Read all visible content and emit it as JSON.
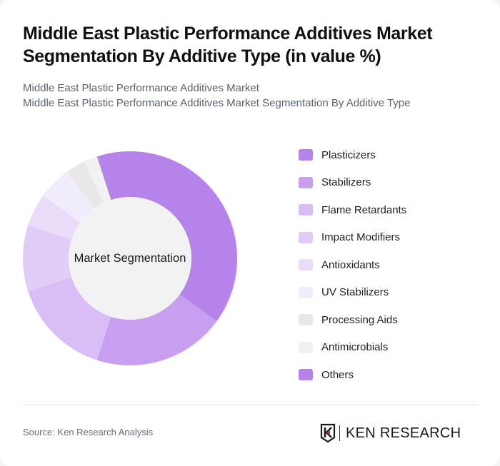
{
  "header": {
    "title": "Middle East Plastic Performance Additives Market Segmentation By Additive Type (in value %)",
    "subtitle_line1": "Middle East Plastic Performance Additives Market",
    "subtitle_line2": "Middle East Plastic Performance Additives Market Segmentation By Additive Type"
  },
  "chart": {
    "center_label": "Market Segmentation"
  },
  "legend": {
    "items": [
      {
        "label": "Plasticizers",
        "color": "#b583ea"
      },
      {
        "label": "Stabilizers",
        "color": "#c79ef0"
      },
      {
        "label": "Flame Retardants",
        "color": "#d8bdf6"
      },
      {
        "label": "Impact Modifiers",
        "color": "#e0ccf7"
      },
      {
        "label": "Antioxidants",
        "color": "#e9dcfa"
      },
      {
        "label": "UV Stabilizers",
        "color": "#f2ebfc"
      },
      {
        "label": "Processing Aids",
        "color": "#e8e8e8"
      },
      {
        "label": "Antimicrobials",
        "color": "#f1f1f1"
      },
      {
        "label": "Others",
        "color": "#b583ea"
      }
    ]
  },
  "footer": {
    "source": "Source: Ken Research Analysis",
    "logo_text": "KEN RESEARCH"
  },
  "chart_data": {
    "type": "pie",
    "subtype": "donut",
    "title": "Middle East Plastic Performance Additives Market Segmentation By Additive Type (in value %)",
    "center_label": "Market Segmentation",
    "categories": [
      "Plasticizers",
      "Stabilizers",
      "Flame Retardants",
      "Impact Modifiers",
      "Antioxidants",
      "UV Stabilizers",
      "Processing Aids",
      "Antimicrobials",
      "Others"
    ],
    "values": [
      40,
      20,
      15,
      10,
      5,
      5,
      3,
      2,
      0
    ],
    "unit": "%",
    "colors": [
      "#b583ea",
      "#c79ef0",
      "#d8bdf6",
      "#e0ccf7",
      "#e9dcfa",
      "#f2ebfc",
      "#e8e8e8",
      "#f1f1f1",
      "#b583ea"
    ],
    "start_angle_deg": -18,
    "legend_position": "right"
  }
}
